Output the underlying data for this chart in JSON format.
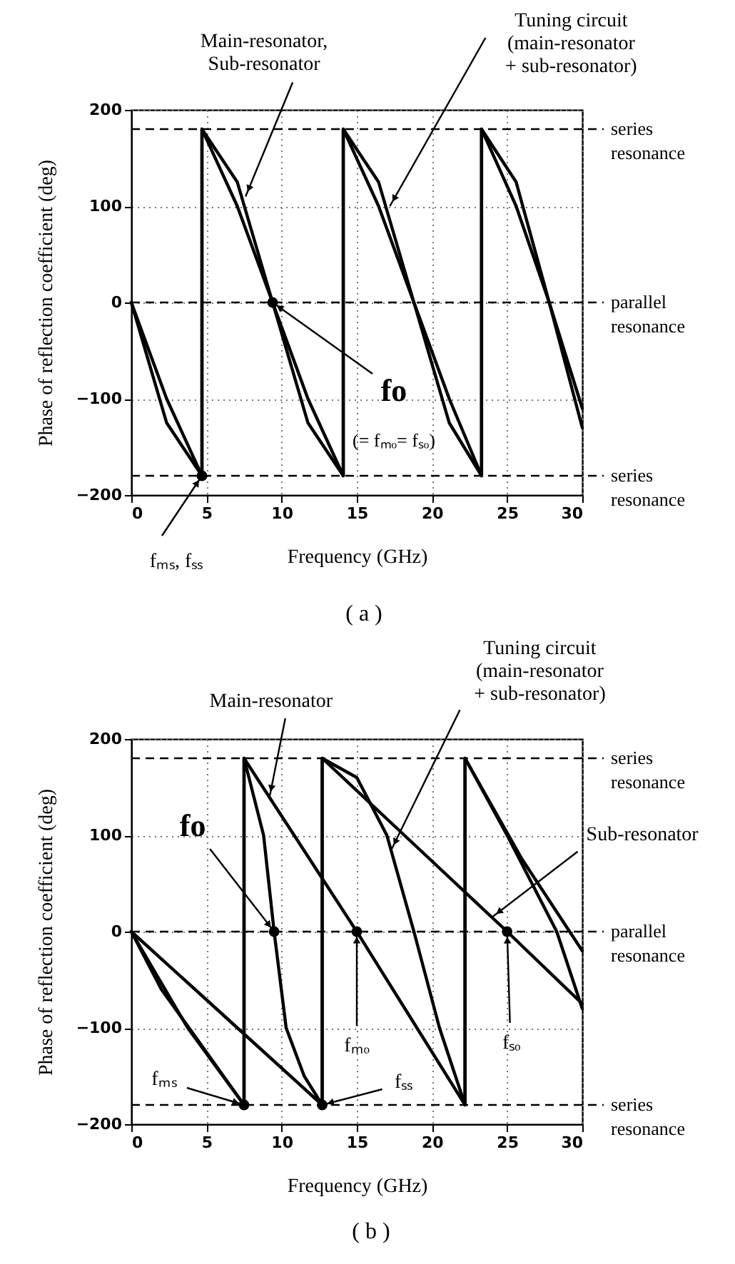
{
  "chart_data": [
    {
      "type": "line",
      "xlabel": "Frequency (GHz)",
      "ylabel": "Phase of reflection coefficient (deg)",
      "xlim": [
        0,
        30
      ],
      "ylim": [
        -200,
        200
      ],
      "xticks": [
        0,
        5,
        10,
        15,
        20,
        25,
        30
      ],
      "yticks": [
        -200,
        -100,
        0,
        100,
        200
      ],
      "grid": true,
      "series": [
        {
          "color": "#000000",
          "x": [
            0,
            2.35,
            4.7,
            4.7,
            7.05,
            9.4,
            11.75,
            14.1,
            14.1,
            16.45,
            18.8,
            21.15,
            23.3,
            23.3,
            25.6,
            27.8,
            30
          ],
          "values": [
            0,
            -100,
            -180,
            180,
            100,
            0,
            -100,
            -180,
            180,
            100,
            0,
            -100,
            -180,
            180,
            100,
            0,
            -110
          ]
        },
        {
          "color": "#000000",
          "x": [
            0,
            2.35,
            4.7,
            4.7,
            7.05,
            9.4,
            11.75,
            14.1,
            14.1,
            16.45,
            18.8,
            21.15,
            23.3,
            23.3,
            25.6,
            27.8,
            30
          ],
          "values": [
            0,
            -125,
            -180,
            180,
            125,
            0,
            -125,
            -180,
            180,
            125,
            0,
            -125,
            -180,
            180,
            125,
            0,
            -130
          ]
        },
        {
          "type": "scatter",
          "marker": "circle",
          "color": "#000000",
          "x": [
            4.7,
            9.4
          ],
          "values": [
            -180,
            0
          ]
        }
      ],
      "ref_lines": [
        {
          "axis": "y",
          "value": 180,
          "label": "series resonance",
          "line_style": "dashed"
        },
        {
          "axis": "y",
          "value": 0,
          "label": "parallel resonance",
          "line_style": "dashed"
        },
        {
          "axis": "y",
          "value": -180,
          "label": "series resonance",
          "line_style": "dashed"
        }
      ],
      "annotations": [
        {
          "text": "Main-resonator, Sub-resonator",
          "x": 7.6,
          "y": 110
        },
        {
          "text": "Tuning circuit (main-resonator + sub-resonator)",
          "x": 17.2,
          "y": 100
        },
        {
          "text": "fo",
          "x": 9.4,
          "y": 0
        },
        "(= fₘₒ= fₛₒ)",
        {
          "text": "fₘₛ, fₛₛ",
          "x": 4.7,
          "y": -180
        },
        "( a )"
      ]
    },
    {
      "type": "line",
      "xlabel": "Frequency (GHz)",
      "ylabel": "Phase of reflection coefficient (deg)",
      "xlim": [
        0,
        30
      ],
      "ylim": [
        -200,
        200
      ],
      "xticks": [
        0,
        5,
        10,
        15,
        20,
        25,
        30
      ],
      "yticks": [
        -200,
        -100,
        0,
        100,
        200
      ],
      "grid": true,
      "series": [
        {
          "color": "#000000",
          "x": [
            0,
            3.75,
            7.5,
            7.5,
            11.25,
            15,
            18.6,
            22.2,
            22.2,
            26,
            30
          ],
          "values": [
            0,
            -100,
            -180,
            180,
            90,
            0,
            -90,
            -180,
            180,
            75,
            -20
          ]
        },
        {
          "color": "#000000",
          "x": [
            0,
            6.35,
            12.7,
            12.7,
            18.85,
            25,
            30
          ],
          "values": [
            0,
            -90,
            -180,
            180,
            90,
            0,
            -75
          ]
        },
        {
          "color": "#000000",
          "x": [
            0,
            2,
            4.3,
            7.5,
            7.5,
            8.8,
            9.5,
            10.3,
            11.5,
            12.7,
            12.7,
            15,
            17,
            18.8,
            20.5,
            22.2,
            22.2,
            25,
            28.3,
            30
          ],
          "values": [
            0,
            -60,
            -110,
            -180,
            180,
            100,
            0,
            -100,
            -150,
            -180,
            180,
            160,
            100,
            0,
            -100,
            -180,
            180,
            100,
            0,
            -80
          ]
        },
        {
          "type": "scatter",
          "marker": "circle",
          "color": "#000000",
          "x": [
            7.5,
            9.5,
            15,
            12.7,
            25
          ],
          "values": [
            -180,
            0,
            0,
            -180,
            0
          ]
        }
      ],
      "ref_lines": [
        {
          "axis": "y",
          "value": 180,
          "label": "series resonance",
          "line_style": "dashed"
        },
        {
          "axis": "y",
          "value": 0,
          "label": "parallel resonance",
          "line_style": "dashed"
        },
        {
          "axis": "y",
          "value": -180,
          "label": "series resonance",
          "line_style": "dashed"
        }
      ],
      "annotations": [
        {
          "text": "Main-resonator",
          "x": 9.2,
          "y": 140
        },
        {
          "text": "Tuning circuit (main-resonator + sub-resonator)",
          "x": 17.3,
          "y": 85
        },
        {
          "text": "Sub-resonator",
          "x": 24,
          "y": 15
        },
        {
          "text": "fo",
          "x": 9.5,
          "y": 0
        },
        {
          "text": "fₘₒ",
          "x": 15,
          "y": 0
        },
        {
          "text": "fₛₒ",
          "x": 25,
          "y": 0
        },
        {
          "text": "fₘₛ",
          "x": 7.5,
          "y": -180
        },
        {
          "text": "fₛₛ",
          "x": 12.7,
          "y": -180
        },
        "( b )"
      ]
    }
  ]
}
